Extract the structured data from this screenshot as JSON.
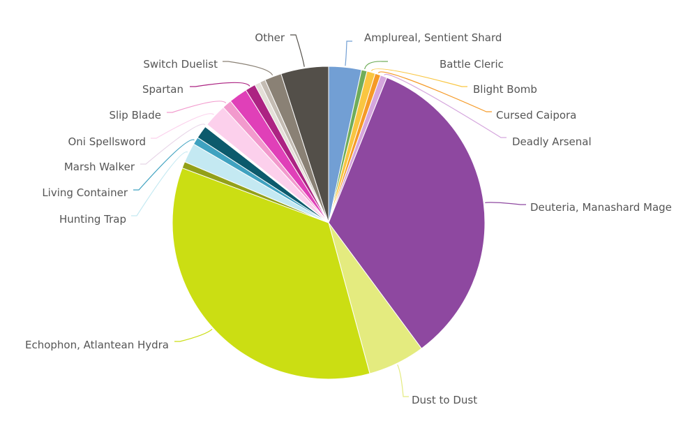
{
  "chart_data": {
    "type": "pie",
    "title": "",
    "slices": [
      {
        "label": "Amplureal, Sentient Shard",
        "value": 3.5,
        "color": "#729fd4"
      },
      {
        "label": "Battle Cleric",
        "value": 0.6,
        "color": "#70ad5a"
      },
      {
        "label": "Blight Bomb",
        "value": 0.9,
        "color": "#f9c641"
      },
      {
        "label": "Cursed Caipora",
        "value": 0.6,
        "color": "#f59a27"
      },
      {
        "label": "Deadly Arsenal",
        "value": 0.7,
        "color": "#d5a6dd"
      },
      {
        "label": "Deuteria, Manashard Mage",
        "value": 35.0,
        "color": "#8e48a0"
      },
      {
        "label": "Dust to Dust",
        "value": 6.1,
        "color": "#e4eb7f"
      },
      {
        "label": "Echophon, Atlantean Hydra",
        "value": 36.2,
        "color": "#cbde13"
      },
      {
        "label": "",
        "value": 0.7,
        "color": "#93a019"
      },
      {
        "label": "Hunting Trap",
        "value": 2.1,
        "color": "#c4e9f2"
      },
      {
        "label": "Living Container",
        "value": 0.8,
        "color": "#3fa2c0"
      },
      {
        "label": "",
        "value": 1.4,
        "color": "#0c5a6c"
      },
      {
        "label": "Marsh Walker",
        "value": 0.3,
        "color": "#ffffff"
      },
      {
        "label": "Oni Spellsword",
        "value": 2.5,
        "color": "#fcd0ec"
      },
      {
        "label": "Slip Blade",
        "value": 1.0,
        "color": "#f29acd"
      },
      {
        "label": "",
        "value": 2.0,
        "color": "#e040b8"
      },
      {
        "label": "Spartan",
        "value": 1.1,
        "color": "#ac2382"
      },
      {
        "label": "",
        "value": 0.6,
        "color": "#e4dfd8"
      },
      {
        "label": "",
        "value": 0.6,
        "color": "#c4bcb3"
      },
      {
        "label": "Switch Duelist",
        "value": 1.8,
        "color": "#8a8175"
      },
      {
        "label": "Other",
        "value": 5.1,
        "color": "#534f49"
      }
    ]
  }
}
